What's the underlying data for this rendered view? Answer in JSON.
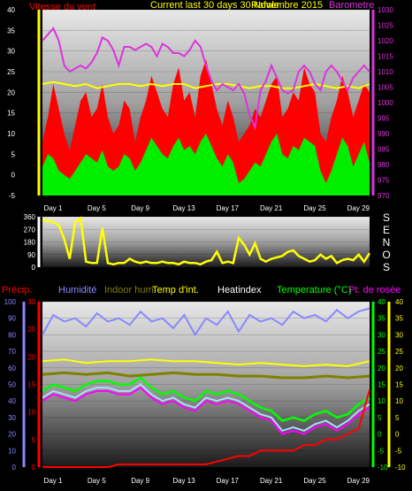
{
  "colors": {
    "wind": "#ff0000",
    "gust": "#ff0000",
    "wind_avg": "#00ee00",
    "baro": "#dd33dd",
    "left_axis": "#ff0000",
    "right_axis": "#dd33dd",
    "yellow": "#ffff00",
    "humidity": "#8888ff",
    "indoor_hum": "#808000",
    "temp_in": "#ffff00",
    "heatindex": "#ffffff",
    "temperature": "#00ff00",
    "dewpoint": "#ff00ff",
    "precip": "#ff0000",
    "x_label": "#ffffff"
  },
  "chart_data": [
    {
      "type": "line",
      "legend": {
        "wind": "Vitesse du vent",
        "title": "Current last 30 days 30 Novembre 2015",
        "title_overlap": "Rafale",
        "baro": "Barometre"
      },
      "x_ticks": [
        "Day 1",
        "Day 5",
        "Day 9",
        "Day 13",
        "Day 17",
        "Day 21",
        "Day 25",
        "Day 29"
      ],
      "x_range": [
        0,
        30
      ],
      "left_axis": {
        "ylim": [
          -5,
          40
        ],
        "ticks": [
          "-5",
          "0",
          "5",
          "10",
          "15",
          "20",
          "25",
          "30",
          "35",
          "40"
        ]
      },
      "right_axis": {
        "ylim": [
          970,
          1030
        ],
        "ticks": [
          "970",
          "975",
          "980",
          "985",
          "990",
          "995",
          "1000",
          "1005",
          "1010",
          "1015",
          "1020",
          "1025",
          "1030"
        ]
      },
      "series": [
        {
          "name": "Rafale",
          "axis": "left",
          "x": [
            0,
            0.5,
            1,
            1.5,
            2,
            2.5,
            3,
            3.5,
            4,
            4.5,
            5,
            5.5,
            6,
            6.5,
            7,
            7.5,
            8,
            8.5,
            9,
            9.5,
            10,
            10.5,
            11,
            11.5,
            12,
            12.5,
            13,
            13.5,
            14,
            14.5,
            15,
            15.5,
            16,
            16.5,
            17,
            17.5,
            18,
            18.5,
            19,
            19.5,
            20,
            20.5,
            21,
            21.5,
            22,
            22.5,
            23,
            23.5,
            24,
            24.5,
            25,
            25.5,
            26,
            26.5,
            27,
            27.5,
            28,
            28.5,
            29,
            29.5,
            30
          ],
          "values": [
            8,
            14,
            22,
            16,
            10,
            6,
            12,
            18,
            20,
            14,
            16,
            22,
            14,
            10,
            12,
            18,
            16,
            8,
            14,
            18,
            24,
            20,
            16,
            14,
            22,
            26,
            18,
            20,
            14,
            24,
            28,
            22,
            16,
            12,
            18,
            14,
            8,
            10,
            12,
            16,
            14,
            18,
            22,
            24,
            14,
            16,
            20,
            18,
            26,
            22,
            20,
            10,
            8,
            14,
            18,
            24,
            20,
            14,
            18,
            22,
            20
          ]
        },
        {
          "name": "Vitesse du vent",
          "axis": "left",
          "x": [
            0,
            0.5,
            1,
            1.5,
            2,
            2.5,
            3,
            3.5,
            4,
            4.5,
            5,
            5.5,
            6,
            6.5,
            7,
            7.5,
            8,
            8.5,
            9,
            9.5,
            10,
            10.5,
            11,
            11.5,
            12,
            12.5,
            13,
            13.5,
            14,
            14.5,
            15,
            15.5,
            16,
            16.5,
            17,
            17.5,
            18,
            18.5,
            19,
            19.5,
            20,
            20.5,
            21,
            21.5,
            22,
            22.5,
            23,
            23.5,
            24,
            24.5,
            25,
            25.5,
            26,
            26.5,
            27,
            27.5,
            28,
            28.5,
            29,
            29.5,
            30
          ],
          "values": [
            2,
            5,
            4,
            1,
            0,
            -1,
            1,
            3,
            5,
            4,
            3,
            6,
            2,
            1,
            2,
            5,
            4,
            1,
            3,
            6,
            9,
            7,
            5,
            4,
            7,
            9,
            6,
            7,
            5,
            8,
            10,
            7,
            4,
            2,
            5,
            3,
            -2,
            -1,
            1,
            3,
            2,
            5,
            8,
            10,
            5,
            4,
            7,
            6,
            9,
            8,
            7,
            1,
            -2,
            1,
            5,
            9,
            7,
            2,
            5,
            8,
            3
          ]
        },
        {
          "name": "Barometre",
          "axis": "right",
          "x": [
            0,
            0.5,
            1,
            1.5,
            2,
            2.5,
            3,
            3.5,
            4,
            4.5,
            5,
            5.5,
            6,
            6.5,
            7,
            7.5,
            8,
            8.5,
            9,
            9.5,
            10,
            10.5,
            11,
            11.5,
            12,
            12.5,
            13,
            13.5,
            14,
            14.5,
            15,
            15.5,
            16,
            16.5,
            17,
            17.5,
            18,
            18.5,
            19,
            19.5,
            20,
            20.5,
            21,
            21.5,
            22,
            22.5,
            23,
            23.5,
            24,
            24.5,
            25,
            25.5,
            26,
            26.5,
            27,
            27.5,
            28,
            28.5,
            29,
            29.5,
            30
          ],
          "values": [
            1020,
            1022,
            1024,
            1020,
            1012,
            1010,
            1011,
            1012,
            1011,
            1013,
            1016,
            1021,
            1020,
            1017,
            1012,
            1018,
            1018,
            1017,
            1018,
            1019,
            1018,
            1015,
            1019,
            1018,
            1016,
            1016,
            1015,
            1017,
            1020,
            1018,
            1012,
            1007,
            1004,
            1006,
            1005,
            1004,
            1006,
            1003,
            996,
            992,
            1004,
            1007,
            1012,
            1008,
            1004,
            1003,
            1004,
            1010,
            1012,
            1010,
            1006,
            1004,
            1010,
            1012,
            1010,
            1007,
            1004,
            1008,
            1010,
            1012,
            1010
          ]
        },
        {
          "name": "Humidite",
          "axis": "left",
          "x": [
            0,
            1,
            2,
            3,
            4,
            5,
            6,
            7,
            8,
            9,
            10,
            11,
            12,
            13,
            14,
            15,
            16,
            17,
            18,
            19,
            20,
            21,
            22,
            23,
            24,
            25,
            26,
            27,
            28,
            29,
            30
          ],
          "values": [
            22,
            22.5,
            22,
            21.5,
            22,
            21,
            21.5,
            22,
            22,
            21.5,
            22,
            21.5,
            22,
            22,
            21,
            21.5,
            22,
            22,
            21.5,
            21,
            21.5,
            21.5,
            21,
            21,
            21.5,
            22,
            21.5,
            21,
            21.5,
            21,
            22
          ]
        }
      ]
    },
    {
      "type": "line",
      "right_labels": [
        "S",
        "E",
        "N",
        "O",
        "S"
      ],
      "x_range": [
        0,
        30
      ],
      "ylim": [
        0,
        360
      ],
      "ticks": [
        "0",
        "90",
        "180",
        "270",
        "360"
      ],
      "series": [
        {
          "name": "Direction",
          "x": [
            0,
            0.5,
            1,
            1.5,
            2,
            2.5,
            3,
            3.5,
            4,
            4.5,
            5,
            5.5,
            6,
            6.5,
            7,
            7.5,
            8,
            8.5,
            9,
            9.5,
            10,
            10.5,
            11,
            11.5,
            12,
            12.5,
            13,
            13.5,
            14,
            14.5,
            15,
            15.5,
            16,
            16.5,
            17,
            17.5,
            18,
            18.5,
            19,
            19.5,
            20,
            20.5,
            21,
            21.5,
            22,
            22.5,
            23,
            23.5,
            24,
            24.5,
            25,
            25.5,
            26,
            26.5,
            27,
            27.5,
            28,
            28.5,
            29,
            29.5,
            30
          ],
          "values": [
            340,
            330,
            320,
            300,
            200,
            60,
            320,
            350,
            40,
            30,
            30,
            280,
            30,
            20,
            30,
            30,
            60,
            40,
            30,
            40,
            30,
            30,
            40,
            30,
            30,
            20,
            40,
            30,
            30,
            20,
            40,
            50,
            110,
            30,
            40,
            30,
            210,
            160,
            90,
            170,
            60,
            40,
            60,
            70,
            80,
            110,
            120,
            80,
            60,
            40,
            50,
            90,
            60,
            80,
            30,
            50,
            60,
            50,
            90,
            40,
            100
          ]
        }
      ]
    },
    {
      "type": "line",
      "legend": {
        "precip": "Précip.",
        "humidity": "Humidité",
        "indoor_hum": "Indoor hum",
        "temp_in": "Temp d'int.",
        "heatindex": "Heatindex",
        "temperature": "Temperature (°C)",
        "dewpoint": "Pt. de rosée"
      },
      "x_ticks": [
        "Day 1",
        "Day 5",
        "Day 9",
        "Day 13",
        "Day 17",
        "Day 21",
        "Day 25",
        "Day 29"
      ],
      "x_range": [
        0,
        30
      ],
      "left_axis_1": {
        "ylim": [
          0,
          100
        ],
        "ticks": [
          "0",
          "10",
          "20",
          "30",
          "40",
          "50",
          "60",
          "70",
          "80",
          "90",
          "100"
        ]
      },
      "left_axis_2": {
        "ylim": [
          0,
          30
        ],
        "ticks": [
          "0",
          "5",
          "10",
          "15",
          "20",
          "25",
          "30"
        ]
      },
      "right_axis": {
        "ylim": [
          -10,
          40
        ],
        "ticks": [
          "-10",
          "-5",
          "0",
          "5",
          "10",
          "15",
          "20",
          "25",
          "30",
          "35",
          "40"
        ]
      },
      "series": [
        {
          "name": "Humidité",
          "axis": "left1",
          "x": [
            0,
            1,
            2,
            3,
            4,
            5,
            6,
            7,
            8,
            9,
            10,
            11,
            12,
            13,
            14,
            15,
            16,
            17,
            18,
            19,
            20,
            21,
            22,
            23,
            24,
            25,
            26,
            27,
            28,
            29,
            30
          ],
          "values": [
            80,
            92,
            88,
            90,
            85,
            93,
            88,
            90,
            86,
            94,
            88,
            90,
            84,
            92,
            80,
            90,
            86,
            94,
            82,
            92,
            88,
            90,
            86,
            94,
            90,
            92,
            88,
            95,
            90,
            94,
            96
          ]
        },
        {
          "name": "Indoor hum",
          "axis": "right",
          "x": [
            0,
            2,
            4,
            6,
            8,
            10,
            12,
            14,
            16,
            18,
            20,
            22,
            24,
            26,
            28,
            30
          ],
          "values": [
            18,
            18.5,
            18,
            18.5,
            17.5,
            18,
            18.5,
            18,
            18,
            17.5,
            17.5,
            17,
            17,
            17.5,
            17,
            17.5
          ]
        },
        {
          "name": "Temp d'int.",
          "axis": "right",
          "x": [
            0,
            2,
            4,
            6,
            8,
            10,
            12,
            14,
            16,
            18,
            20,
            22,
            24,
            26,
            28,
            30
          ],
          "values": [
            22,
            22.5,
            21.5,
            22,
            22,
            22.5,
            22,
            22,
            21.5,
            21,
            21.5,
            21,
            20.5,
            21,
            20.5,
            22
          ]
        },
        {
          "name": "Temperature (°C)",
          "axis": "right",
          "x": [
            0,
            1,
            2,
            3,
            4,
            5,
            6,
            7,
            8,
            9,
            10,
            11,
            12,
            13,
            14,
            15,
            16,
            17,
            18,
            19,
            20,
            21,
            22,
            23,
            24,
            25,
            26,
            27,
            28,
            29,
            30
          ],
          "values": [
            13,
            15,
            14,
            13,
            15,
            16,
            16,
            15,
            15,
            17,
            14,
            12,
            13,
            11,
            10,
            13,
            12,
            13,
            12,
            10,
            8,
            7,
            4,
            5,
            4,
            6,
            7,
            5,
            6,
            9,
            11
          ]
        },
        {
          "name": "Heatindex",
          "axis": "right",
          "x": [
            0,
            1,
            2,
            3,
            4,
            5,
            6,
            7,
            8,
            9,
            10,
            11,
            12,
            13,
            14,
            15,
            16,
            17,
            18,
            19,
            20,
            21,
            22,
            23,
            24,
            25,
            26,
            27,
            28,
            29,
            30
          ],
          "values": [
            11,
            13,
            12,
            11,
            13,
            14,
            14,
            13,
            13,
            15,
            12,
            10,
            11,
            9,
            8,
            11,
            10,
            11,
            10,
            8,
            6,
            5,
            1,
            2,
            1,
            3,
            4,
            2,
            4,
            7,
            9
          ]
        },
        {
          "name": "Pt. de rosée",
          "axis": "right",
          "x": [
            0,
            1,
            2,
            3,
            4,
            5,
            6,
            7,
            8,
            9,
            10,
            11,
            12,
            13,
            14,
            15,
            16,
            17,
            18,
            19,
            20,
            21,
            22,
            23,
            24,
            25,
            26,
            27,
            28,
            29,
            30
          ],
          "values": [
            10,
            12,
            11,
            10,
            12,
            13,
            13,
            12,
            12,
            14,
            11,
            9,
            10,
            8,
            7,
            10,
            9,
            10,
            9,
            7,
            5,
            4,
            0,
            1,
            0,
            2,
            3,
            1,
            3,
            6,
            8
          ]
        },
        {
          "name": "Précip.",
          "axis": "left2",
          "x": [
            0,
            1,
            2,
            3,
            4,
            5,
            6,
            7,
            8,
            9,
            10,
            11,
            12,
            13,
            14,
            15,
            16,
            17,
            18,
            19,
            20,
            21,
            22,
            23,
            24,
            25,
            26,
            27,
            28,
            29,
            30
          ],
          "values": [
            0,
            0,
            0,
            0,
            0,
            0,
            0,
            0.5,
            0.5,
            0.5,
            0.5,
            0.5,
            0.5,
            0.5,
            0.5,
            0.5,
            1,
            1.5,
            2,
            2,
            3,
            3,
            3,
            3,
            4,
            4,
            5,
            5,
            6,
            7,
            14
          ]
        }
      ]
    }
  ]
}
